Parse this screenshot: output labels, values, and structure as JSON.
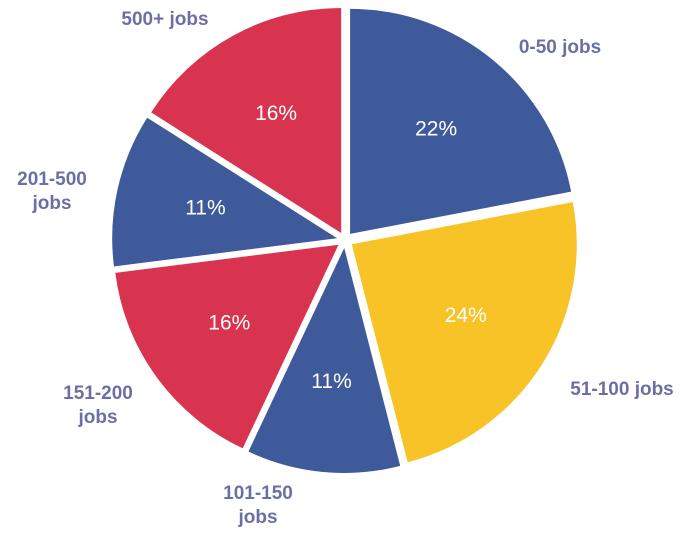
{
  "chart_data": {
    "type": "pie",
    "categories": [
      "0-50 jobs",
      "51-100 jobs",
      "101-150 jobs",
      "151-200 jobs",
      "201-500 jobs",
      "500+ jobs"
    ],
    "values": [
      22,
      24,
      11,
      16,
      11,
      16
    ],
    "value_labels": [
      "22%",
      "24%",
      "11%",
      "16%",
      "11%",
      "16%"
    ],
    "colors": [
      "#3f5a9b",
      "#f8c326",
      "#3f5a9b",
      "#d8344f",
      "#3f5a9b",
      "#d8344f"
    ]
  }
}
